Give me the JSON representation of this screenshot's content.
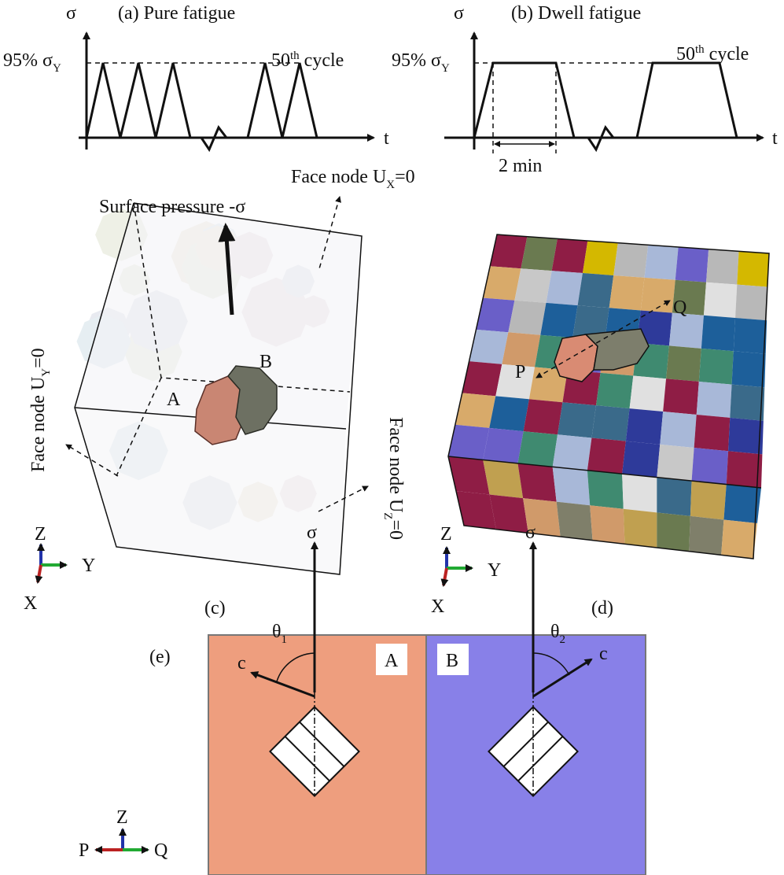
{
  "panel_a": {
    "title": "(a) Pure fatigue",
    "y_axis": "σ",
    "x_axis": "t",
    "level": {
      "text": "95% σ",
      "sub": "Y"
    },
    "cycle": {
      "number": "50",
      "sup": "th",
      "text": "cycle"
    }
  },
  "panel_b": {
    "title": "(b) Dwell fatigue",
    "y_axis": "σ",
    "x_axis": "t",
    "level": {
      "text": "95% σ",
      "sub": "Y"
    },
    "cycle": {
      "number": "50",
      "sup": "th",
      "text": "cycle"
    },
    "dwell": "2 min"
  },
  "panel_c": {
    "label": "(c)",
    "load": "Surface pressure -σ",
    "bc_x": {
      "text": "Face node U",
      "sub": "X",
      "end": "=0"
    },
    "bc_y": {
      "text": "Face node U",
      "sub": "Y",
      "end": "=0"
    },
    "bc_z": {
      "text": "Face node U",
      "sub": "Z",
      "end": "=0"
    },
    "grain_a": "A",
    "grain_b": "B",
    "axes": {
      "z": "Z",
      "y": "Y",
      "x": "X"
    }
  },
  "panel_d": {
    "label": "(d)",
    "path_start": "P",
    "path_end": "Q",
    "axes": {
      "z": "Z",
      "y": "Y",
      "x": "X"
    }
  },
  "panel_e": {
    "label": "(e)",
    "grain_a": "A",
    "grain_b": "B",
    "stress_a": "σ",
    "c_a": "c",
    "angle_a": {
      "text": "θ",
      "sub": "1"
    },
    "stress_b": "σ",
    "c_b": "c",
    "angle_b": {
      "text": "θ",
      "sub": "2"
    },
    "axes": {
      "z": "Z",
      "p": "P",
      "q": "Q"
    }
  }
}
